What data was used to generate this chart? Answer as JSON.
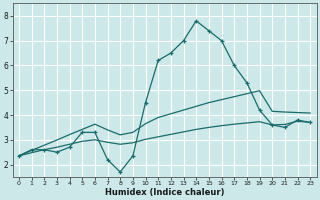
{
  "xlabel": "Humidex (Indice chaleur)",
  "bg_color": "#cce8e8",
  "grid_color": "#ffffff",
  "line_color": "#1a6b6b",
  "xlim": [
    -0.5,
    23.5
  ],
  "ylim": [
    1.5,
    8.5
  ],
  "xticks": [
    0,
    1,
    2,
    3,
    4,
    5,
    6,
    7,
    8,
    9,
    10,
    11,
    12,
    13,
    14,
    15,
    16,
    17,
    18,
    19,
    20,
    21,
    22,
    23
  ],
  "yticks": [
    2,
    3,
    4,
    5,
    6,
    7,
    8
  ],
  "line1_x": [
    0,
    1,
    2,
    3,
    4,
    5,
    6,
    7,
    8,
    9,
    10,
    11,
    12,
    13,
    14,
    15,
    16,
    17,
    18,
    19,
    20,
    21,
    22,
    23
  ],
  "line1_y": [
    2.35,
    2.6,
    2.6,
    2.5,
    2.7,
    3.3,
    3.3,
    2.2,
    1.7,
    2.35,
    4.5,
    6.2,
    6.5,
    7.0,
    7.8,
    7.4,
    7.0,
    6.0,
    5.3,
    4.2,
    3.6,
    3.5,
    3.8,
    3.7
  ],
  "line2_x": [
    0,
    1,
    2,
    3,
    4,
    5,
    6,
    7,
    8,
    9,
    10,
    11,
    12,
    13,
    14,
    15,
    16,
    17,
    18,
    19,
    20,
    21,
    22,
    23
  ],
  "line2_y": [
    2.35,
    2.57,
    2.78,
    2.99,
    3.21,
    3.42,
    3.63,
    3.4,
    3.2,
    3.3,
    3.65,
    3.9,
    4.05,
    4.2,
    4.35,
    4.5,
    4.62,
    4.74,
    4.86,
    4.98,
    4.15,
    4.12,
    4.1,
    4.08
  ],
  "line3_x": [
    0,
    1,
    2,
    3,
    4,
    5,
    6,
    7,
    8,
    9,
    10,
    11,
    12,
    13,
    14,
    15,
    16,
    17,
    18,
    19,
    20,
    21,
    22,
    23
  ],
  "line3_y": [
    2.35,
    2.48,
    2.6,
    2.7,
    2.82,
    2.94,
    3.0,
    2.9,
    2.82,
    2.88,
    3.02,
    3.12,
    3.22,
    3.32,
    3.42,
    3.5,
    3.57,
    3.63,
    3.68,
    3.73,
    3.6,
    3.62,
    3.75,
    3.7
  ]
}
